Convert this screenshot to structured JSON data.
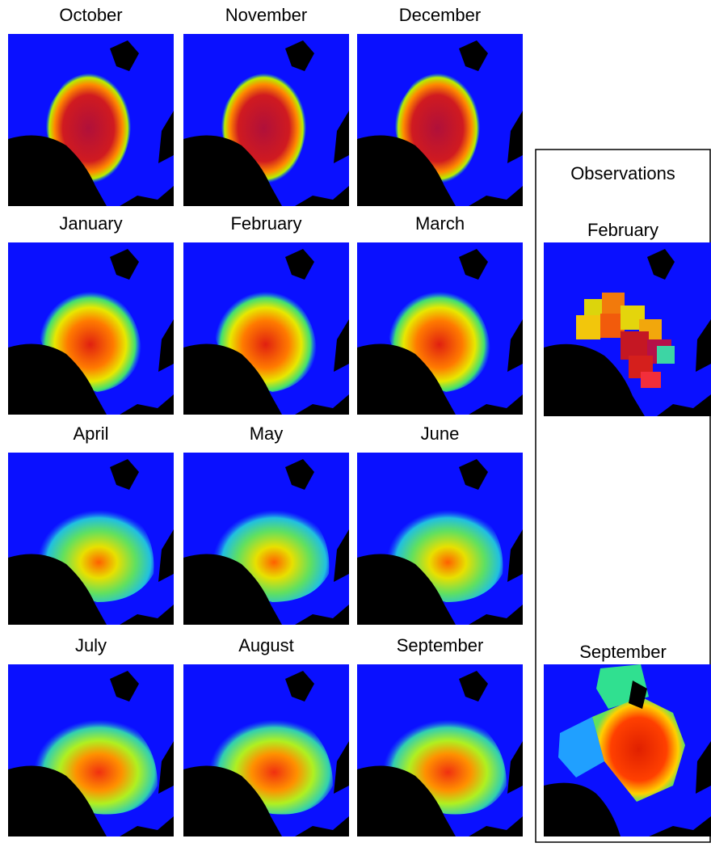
{
  "panels": [
    {
      "label": "October"
    },
    {
      "label": "November"
    },
    {
      "label": "December"
    },
    {
      "label": "January"
    },
    {
      "label": "February"
    },
    {
      "label": "March"
    },
    {
      "label": "April"
    },
    {
      "label": "May"
    },
    {
      "label": "June"
    },
    {
      "label": "July"
    },
    {
      "label": "August"
    },
    {
      "label": "September"
    }
  ],
  "observations": {
    "title": "Observations",
    "panels": [
      {
        "label": "February"
      },
      {
        "label": "September"
      }
    ]
  }
}
